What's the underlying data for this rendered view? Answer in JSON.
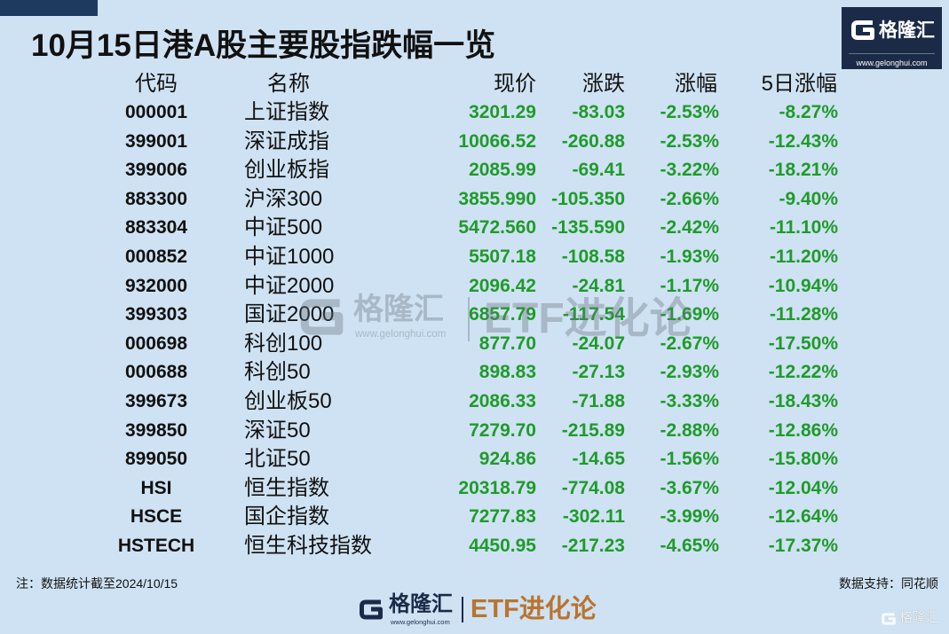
{
  "brand": {
    "name": "格隆汇",
    "url": "www.gelonghui.com",
    "channel": "ETF进化论"
  },
  "footer": {
    "note": "注：数据统计截至2024/10/15",
    "source": "数据支持：同花顺"
  },
  "icons": {
    "brand": "g-logo-icon"
  },
  "colors": {
    "background": "#cfe2f3",
    "value_green": "#1f9b2a",
    "brand_navy": "#1b2b47",
    "channel_orange": "#b9742f"
  },
  "chart_data": {
    "type": "table",
    "title": "10月15日港A股主要股指跌幅一览",
    "columns": [
      "代码",
      "名称",
      "现价",
      "涨跌",
      "涨幅",
      "5日涨幅"
    ],
    "rows": [
      [
        "000001",
        "上证指数",
        "3201.29",
        "-83.03",
        "-2.53%",
        "-8.27%"
      ],
      [
        "399001",
        "深证成指",
        "10066.52",
        "-260.88",
        "-2.53%",
        "-12.43%"
      ],
      [
        "399006",
        "创业板指",
        "2085.99",
        "-69.41",
        "-3.22%",
        "-18.21%"
      ],
      [
        "883300",
        "沪深300",
        "3855.990",
        "-105.350",
        "-2.66%",
        "-9.40%"
      ],
      [
        "883304",
        "中证500",
        "5472.560",
        "-135.590",
        "-2.42%",
        "-11.10%"
      ],
      [
        "000852",
        "中证1000",
        "5507.18",
        "-108.58",
        "-1.93%",
        "-11.20%"
      ],
      [
        "932000",
        "中证2000",
        "2096.42",
        "-24.81",
        "-1.17%",
        "-10.94%"
      ],
      [
        "399303",
        "国证2000",
        "6857.79",
        "-117.54",
        "-1.69%",
        "-11.28%"
      ],
      [
        "000698",
        "科创100",
        "877.70",
        "-24.07",
        "-2.67%",
        "-17.50%"
      ],
      [
        "000688",
        "科创50",
        "898.83",
        "-27.13",
        "-2.93%",
        "-12.22%"
      ],
      [
        "399673",
        "创业板50",
        "2086.33",
        "-71.88",
        "-3.33%",
        "-18.43%"
      ],
      [
        "399850",
        "深证50",
        "7279.70",
        "-215.89",
        "-2.88%",
        "-12.86%"
      ],
      [
        "899050",
        "北证50",
        "924.86",
        "-14.65",
        "-1.56%",
        "-15.80%"
      ],
      [
        "HSI",
        "恒生指数",
        "20318.79",
        "-774.08",
        "-3.67%",
        "-12.04%"
      ],
      [
        "HSCE",
        "国企指数",
        "7277.83",
        "-302.11",
        "-3.99%",
        "-12.64%"
      ],
      [
        "HSTECH",
        "恒生科技指数",
        "4450.95",
        "-217.23",
        "-4.65%",
        "-17.37%"
      ]
    ]
  }
}
